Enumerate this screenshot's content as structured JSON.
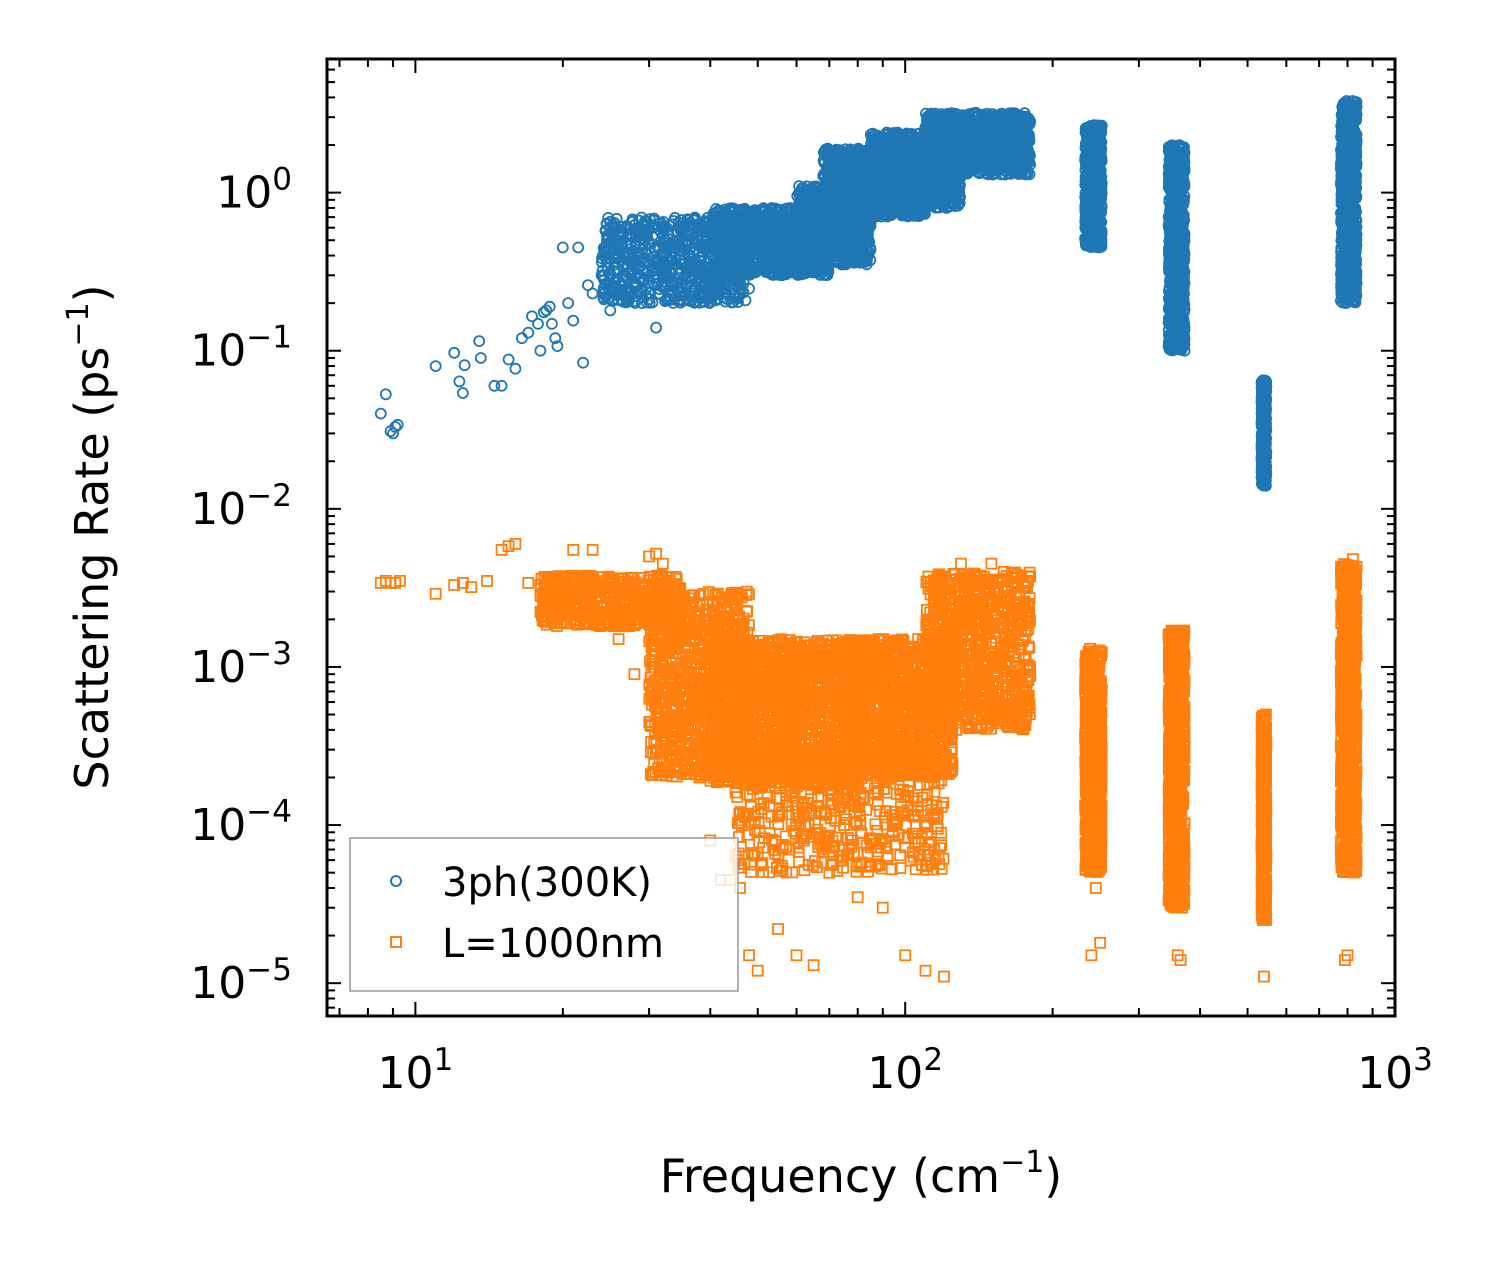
{
  "chart_data": {
    "type": "scatter",
    "title": "",
    "xlabel": "Frequency (cm",
    "xlabel_sup": "−1",
    "xlabel_end": ")",
    "ylabel": "Scattering Rate (ps",
    "ylabel_sup": "−1",
    "ylabel_end": ")",
    "xscale": "log",
    "yscale": "log",
    "xlim": [
      6.6,
      1000
    ],
    "ylim": [
      6.2e-06,
      7.0
    ],
    "x_ticks": [
      {
        "value": 10,
        "base": "10",
        "exp": "1"
      },
      {
        "value": 100,
        "base": "10",
        "exp": "2"
      },
      {
        "value": 1000,
        "base": "10",
        "exp": "3"
      }
    ],
    "y_ticks": [
      {
        "value": 1e-05,
        "base": "10",
        "exp": "−5"
      },
      {
        "value": 0.0001,
        "base": "10",
        "exp": "−4"
      },
      {
        "value": 0.001,
        "base": "10",
        "exp": "−3"
      },
      {
        "value": 0.01,
        "base": "10",
        "exp": "−2"
      },
      {
        "value": 0.1,
        "base": "10",
        "exp": "−1"
      },
      {
        "value": 1,
        "base": "10",
        "exp": "0"
      }
    ],
    "legend_position": "bottom-left",
    "series": [
      {
        "name": "3ph(300K)",
        "marker": "circle",
        "color": "#1f77b4",
        "points": [
          [
            8.5,
            0.04
          ],
          [
            8.7,
            0.053
          ],
          [
            8.9,
            0.031
          ],
          [
            9.0,
            0.03
          ],
          [
            9.1,
            0.033
          ],
          [
            9.2,
            0.034
          ],
          [
            11.0,
            0.08
          ],
          [
            12.0,
            0.097
          ],
          [
            12.3,
            0.064
          ],
          [
            12.5,
            0.054
          ],
          [
            12.6,
            0.081
          ],
          [
            13.5,
            0.115
          ],
          [
            13.6,
            0.09
          ],
          [
            14.5,
            0.06
          ],
          [
            15.0,
            0.06
          ],
          [
            15.5,
            0.088
          ],
          [
            16.0,
            0.077
          ],
          [
            16.5,
            0.12
          ],
          [
            17.0,
            0.13
          ],
          [
            17.3,
            0.165
          ],
          [
            17.8,
            0.148
          ],
          [
            18.0,
            0.1
          ],
          [
            18.3,
            0.175
          ],
          [
            18.5,
            0.18
          ],
          [
            18.8,
            0.19
          ],
          [
            19.0,
            0.148
          ],
          [
            19.3,
            0.12
          ],
          [
            19.5,
            0.107
          ],
          [
            20.0,
            0.45
          ],
          [
            20.5,
            0.2
          ],
          [
            21.0,
            0.155
          ],
          [
            21.5,
            0.45
          ],
          [
            22.0,
            0.084
          ],
          [
            22.5,
            0.26
          ],
          [
            23.0,
            0.23
          ],
          [
            24.0,
            0.3
          ],
          [
            24.5,
            0.22
          ],
          [
            25.0,
            0.18
          ],
          [
            25.5,
            0.35
          ],
          [
            26.0,
            0.48
          ],
          [
            26.5,
            0.28
          ],
          [
            27.0,
            0.4
          ],
          [
            27.5,
            0.32
          ],
          [
            28.0,
            0.25
          ],
          [
            28.5,
            0.42
          ],
          [
            29.0,
            0.2
          ],
          [
            30.0,
            0.27
          ],
          [
            30.5,
            0.37
          ],
          [
            31.0,
            0.14
          ],
          [
            32.0,
            0.3
          ],
          [
            33.0,
            0.45
          ],
          [
            34.0,
            0.26
          ],
          [
            35.0,
            0.35
          ],
          [
            36.0,
            0.5
          ],
          [
            37.0,
            0.23
          ],
          [
            38.0,
            0.42
          ],
          [
            39.0,
            0.3
          ],
          [
            40.0,
            0.6
          ],
          [
            41.0,
            0.28
          ],
          [
            42.0,
            0.55
          ],
          [
            43.0,
            0.4
          ],
          [
            44.0,
            0.7
          ],
          [
            45.0,
            0.45
          ],
          [
            46.0,
            0.35
          ],
          [
            47.0,
            0.62
          ],
          [
            48.0,
            0.5
          ],
          [
            50.0,
            0.45
          ],
          [
            52.0,
            0.65
          ],
          [
            54.0,
            0.55
          ],
          [
            56.0,
            0.4
          ],
          [
            58.0,
            0.7
          ],
          [
            60.0,
            0.5
          ],
          [
            62.0,
            0.45
          ],
          [
            64.0,
            0.6
          ],
          [
            66.0,
            0.55
          ],
          [
            68.0,
            0.5
          ],
          [
            70.0,
            1.1
          ],
          [
            72.0,
            0.8
          ],
          [
            74.0,
            0.6
          ],
          [
            76.0,
            1.2
          ],
          [
            78.0,
            0.9
          ],
          [
            80.0,
            1.0
          ],
          [
            85.0,
            1.4
          ],
          [
            90.0,
            1.5
          ],
          [
            95.0,
            1.2
          ],
          [
            100.0,
            1.8
          ],
          [
            105.0,
            2.2
          ],
          [
            110.0,
            1.5
          ],
          [
            115.0,
            1.8
          ],
          [
            120.0,
            2.0
          ],
          [
            130.0,
            2.5
          ],
          [
            140.0,
            2.8
          ],
          [
            150.0,
            3.0
          ],
          [
            160.0,
            2.7
          ],
          [
            170.0,
            2.5
          ],
          [
            235.0,
            1.8
          ],
          [
            240.0,
            0.7
          ],
          [
            245.0,
            2.5
          ],
          [
            248.0,
            0.5
          ],
          [
            250.0,
            1.2
          ],
          [
            350.0,
            1.5
          ],
          [
            355.0,
            0.5
          ],
          [
            360.0,
            0.4
          ],
          [
            365.0,
            0.25
          ],
          [
            370.0,
            0.13
          ],
          [
            372.0,
            0.1
          ],
          [
            535.0,
            0.06
          ],
          [
            538.0,
            0.04
          ],
          [
            540.0,
            0.025
          ],
          [
            542.0,
            0.018
          ],
          [
            545.0,
            0.014
          ],
          [
            780.0,
            1.0
          ],
          [
            790.0,
            0.4
          ],
          [
            800.0,
            0.3
          ],
          [
            810.0,
            2.0
          ],
          [
            820.0,
            3.5
          ],
          [
            830.0,
            3.0
          ]
        ],
        "clusters": [
          {
            "x_range": [
              24,
              48
            ],
            "y_range": [
              0.2,
              0.7
            ],
            "count": 700
          },
          {
            "x_range": [
              40,
              70
            ],
            "y_range": [
              0.3,
              0.8
            ],
            "count": 900
          },
          {
            "x_range": [
              60,
              85
            ],
            "y_range": [
              0.35,
              1.1
            ],
            "count": 900
          },
          {
            "x_range": [
              68,
              110
            ],
            "y_range": [
              0.7,
              1.9
            ],
            "count": 900
          },
          {
            "x_range": [
              85,
              130
            ],
            "y_range": [
              0.8,
              2.4
            ],
            "count": 900
          },
          {
            "x_range": [
              110,
              180
            ],
            "y_range": [
              1.3,
              3.2
            ],
            "count": 900
          },
          {
            "x_range": [
              233,
              252
            ],
            "y_range": [
              0.45,
              2.7
            ],
            "count": 700
          },
          {
            "x_range": [
              345,
              372
            ],
            "y_range": [
              0.1,
              2.0
            ],
            "count": 800
          },
          {
            "x_range": [
              534,
              546
            ],
            "y_range": [
              0.014,
              0.065
            ],
            "count": 500
          },
          {
            "x_range": [
              775,
              835
            ],
            "y_range": [
              0.2,
              3.8
            ],
            "count": 900
          }
        ]
      },
      {
        "name": "L=1000nm",
        "marker": "square",
        "color": "#ff7f0e",
        "points": [
          [
            8.5,
            0.0034
          ],
          [
            8.7,
            0.0035
          ],
          [
            8.9,
            0.0034
          ],
          [
            9.1,
            0.0034
          ],
          [
            9.3,
            0.0035
          ],
          [
            11.0,
            0.0029
          ],
          [
            12.0,
            0.0033
          ],
          [
            12.5,
            0.0034
          ],
          [
            13.0,
            0.0032
          ],
          [
            14.0,
            0.0035
          ],
          [
            15.0,
            0.0055
          ],
          [
            15.5,
            0.0058
          ],
          [
            16.0,
            0.006
          ],
          [
            17.0,
            0.0034
          ],
          [
            18.0,
            0.0033
          ],
          [
            19.0,
            0.0033
          ],
          [
            20.0,
            0.003
          ],
          [
            21.0,
            0.0055
          ],
          [
            22.0,
            0.0034
          ],
          [
            23.0,
            0.0055
          ],
          [
            25.0,
            0.003
          ],
          [
            26.0,
            0.0015
          ],
          [
            28.0,
            0.0009
          ],
          [
            30.0,
            0.005
          ],
          [
            31.0,
            0.0052
          ],
          [
            32.0,
            0.0045
          ],
          [
            33.0,
            0.0035
          ],
          [
            34.0,
            0.0007
          ],
          [
            36.0,
            0.0004
          ],
          [
            38.0,
            0.0002
          ],
          [
            40.0,
            8e-05
          ],
          [
            42.0,
            4.5e-05
          ],
          [
            44.0,
            4.5e-05
          ],
          [
            46.0,
            4e-05
          ],
          [
            48.0,
            1.5e-05
          ],
          [
            50.0,
            1.2e-05
          ],
          [
            55.0,
            2.2e-05
          ],
          [
            60.0,
            1.5e-05
          ],
          [
            65.0,
            1.3e-05
          ],
          [
            70.0,
            5e-05
          ],
          [
            80.0,
            3.5e-05
          ],
          [
            90.0,
            3e-05
          ],
          [
            100.0,
            1.5e-05
          ],
          [
            110.0,
            1.2e-05
          ],
          [
            120.0,
            1.1e-05
          ],
          [
            130.0,
            0.0045
          ],
          [
            140.0,
            0.0035
          ],
          [
            150.0,
            0.0045
          ],
          [
            160.0,
            0.003
          ],
          [
            170.0,
            0.002
          ],
          [
            180.0,
            0.001
          ],
          [
            240.0,
            1.5e-05
          ],
          [
            245.0,
            4e-05
          ],
          [
            250.0,
            1.8e-05
          ],
          [
            360.0,
            1.5e-05
          ],
          [
            365.0,
            1.4e-05
          ],
          [
            370.0,
            0.0017
          ],
          [
            540.0,
            1.1e-05
          ],
          [
            545.0,
            0.0005
          ],
          [
            790.0,
            1.4e-05
          ],
          [
            800.0,
            1.5e-05
          ],
          [
            820.0,
            0.0048
          ]
        ],
        "clusters": [
          {
            "x_range": [
              18,
              35
            ],
            "y_range": [
              0.0018,
              0.0038
            ],
            "count": 500
          },
          {
            "x_range": [
              30,
              48
            ],
            "y_range": [
              0.0002,
              0.003
            ],
            "count": 900
          },
          {
            "x_range": [
              40,
              80
            ],
            "y_range": [
              0.00018,
              0.0015
            ],
            "count": 1600
          },
          {
            "x_range": [
              45,
              120
            ],
            "y_range": [
              5e-05,
              0.0003
            ],
            "count": 500
          },
          {
            "x_range": [
              75,
              125
            ],
            "y_range": [
              0.0002,
              0.0015
            ],
            "count": 1200
          },
          {
            "x_range": [
              110,
              180
            ],
            "y_range": [
              0.0004,
              0.004
            ],
            "count": 900
          },
          {
            "x_range": [
              233,
              252
            ],
            "y_range": [
              5e-05,
              0.0013
            ],
            "count": 700
          },
          {
            "x_range": [
              345,
              372
            ],
            "y_range": [
              3e-05,
              0.0017
            ],
            "count": 800
          },
          {
            "x_range": [
              534,
              546
            ],
            "y_range": [
              2.5e-05,
              0.0005
            ],
            "count": 500
          },
          {
            "x_range": [
              775,
              835
            ],
            "y_range": [
              5e-05,
              0.0045
            ],
            "count": 900
          }
        ]
      }
    ]
  }
}
